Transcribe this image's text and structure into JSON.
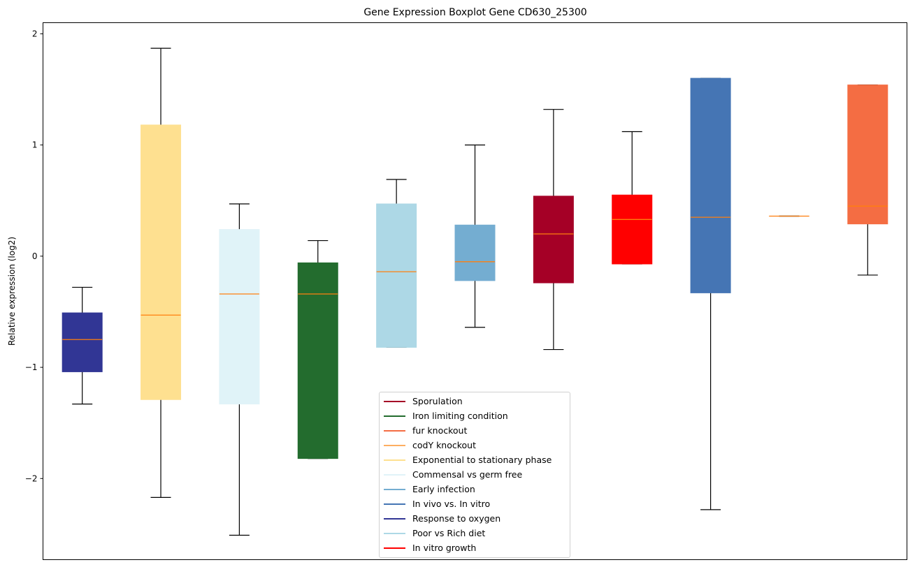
{
  "chart_data": {
    "type": "boxplot",
    "title": "Gene Expression Boxplot Gene CD630_25300",
    "xlabel": "",
    "ylabel": "Relative expression (log2)",
    "ylim": [
      -2.73,
      2.1
    ],
    "yticks": [
      2,
      1,
      0,
      -1,
      -2
    ],
    "ytick_labels": [
      "2",
      "1",
      "0",
      "−1",
      "−2"
    ],
    "grid": false,
    "legend_position": "lower-center",
    "median_color": "#ff7f0e",
    "boxes": [
      {
        "name": "Response to oxygen",
        "color": "#313695",
        "whisker_low": -1.33,
        "q1": -1.04,
        "median": -0.75,
        "q3": -0.51,
        "whisker_high": -0.28
      },
      {
        "name": "Exponential to stationary phase",
        "color": "#fee090",
        "whisker_low": -2.17,
        "q1": -1.29,
        "median": -0.53,
        "q3": 1.18,
        "whisker_high": 1.87
      },
      {
        "name": "Commensal vs germ free",
        "color": "#e0f3f8",
        "whisker_low": -2.51,
        "q1": -1.33,
        "median": -0.34,
        "q3": 0.24,
        "whisker_high": 0.47
      },
      {
        "name": "Iron limiting condition",
        "color": "#236c2e",
        "whisker_low": -1.82,
        "q1": -1.82,
        "median": -0.34,
        "q3": -0.06,
        "whisker_high": 0.14
      },
      {
        "name": "Poor vs Rich diet",
        "color": "#add8e6",
        "whisker_low": -0.82,
        "q1": -0.82,
        "median": -0.14,
        "q3": 0.47,
        "whisker_high": 0.69
      },
      {
        "name": "Early infection",
        "color": "#74add1",
        "whisker_low": -0.64,
        "q1": -0.22,
        "median": -0.05,
        "q3": 0.28,
        "whisker_high": 1.0
      },
      {
        "name": "Sporulation",
        "color": "#a50026",
        "whisker_low": -0.84,
        "q1": -0.24,
        "median": 0.2,
        "q3": 0.54,
        "whisker_high": 1.32
      },
      {
        "name": "In vitro growth",
        "color": "#ff0000",
        "whisker_low": -0.07,
        "q1": -0.07,
        "median": 0.33,
        "q3": 0.55,
        "whisker_high": 1.12
      },
      {
        "name": "In vivo vs. In vitro",
        "color": "#4575b4",
        "whisker_low": -2.28,
        "q1": -0.33,
        "median": 0.35,
        "q3": 1.6,
        "whisker_high": 1.6
      },
      {
        "name": "codY knockout",
        "color": "#fdae61",
        "whisker_low": 0.36,
        "q1": 0.36,
        "median": 0.36,
        "q3": 0.36,
        "whisker_high": 0.36
      },
      {
        "name": "fur knockout",
        "color": "#f46d43",
        "whisker_low": -0.17,
        "q1": 0.29,
        "median": 0.45,
        "q3": 1.54,
        "whisker_high": 1.54
      }
    ],
    "legend": [
      {
        "label": "Sporulation",
        "color": "#a50026"
      },
      {
        "label": "Iron limiting condition",
        "color": "#236c2e"
      },
      {
        "label": "fur knockout",
        "color": "#f46d43"
      },
      {
        "label": "codY knockout",
        "color": "#fdae61"
      },
      {
        "label": "Exponential to stationary phase",
        "color": "#fee090"
      },
      {
        "label": "Commensal vs germ free",
        "color": "#e0f3f8"
      },
      {
        "label": "Early infection",
        "color": "#74add1"
      },
      {
        "label": "In vivo vs. In vitro",
        "color": "#4575b4"
      },
      {
        "label": "Response to oxygen",
        "color": "#313695"
      },
      {
        "label": "Poor vs Rich diet",
        "color": "#add8e6"
      },
      {
        "label": "In vitro growth",
        "color": "#ff0000"
      }
    ]
  }
}
